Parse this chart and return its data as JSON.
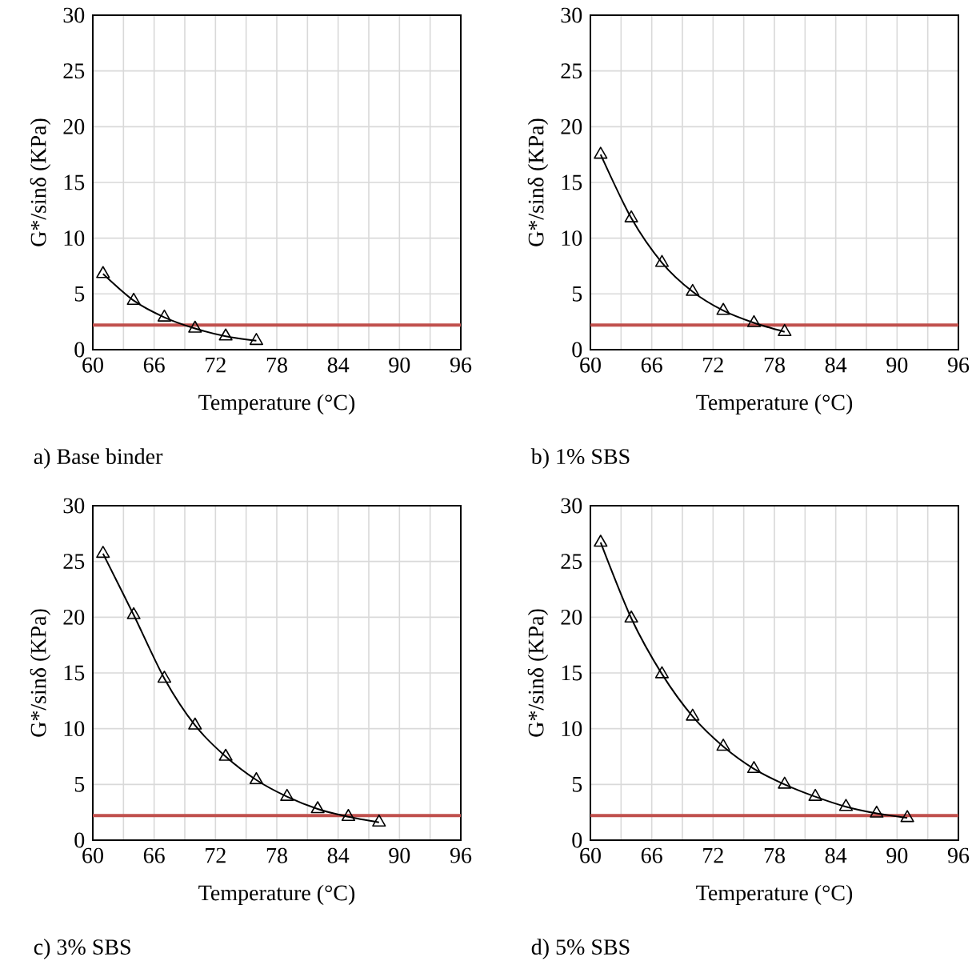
{
  "chart_data": [
    {
      "type": "line",
      "title": "a)  Base binder",
      "xlabel": "Temperature (°C)",
      "ylabel": "G*/sinδ (KPa)",
      "x": [
        61,
        64,
        67,
        70,
        73,
        76
      ],
      "series": [
        {
          "color": "#000000",
          "values": [
            6.8,
            4.4,
            2.9,
            1.9,
            1.2,
            0.8
          ]
        }
      ],
      "marker": "triangle",
      "xlim": [
        60,
        96
      ],
      "ylim": [
        0,
        30
      ],
      "xticks": [
        60,
        {
          "value": 63,
          "label": null
        },
        66,
        {
          "value": 69,
          "label": null
        },
        72,
        {
          "value": 75,
          "label": null
        },
        78,
        {
          "value": 81,
          "label": null
        },
        84,
        {
          "value": 87,
          "label": null
        },
        90,
        {
          "value": 93,
          "label": null
        },
        96
      ],
      "yticks": [
        0,
        5,
        10,
        15,
        20,
        25,
        30
      ],
      "grid": true,
      "ref_lines": [
        {
          "axis": "y",
          "value": 2.2,
          "color": "#c0504d"
        }
      ]
    },
    {
      "type": "line",
      "title": "b)  1% SBS",
      "xlabel": "Temperature (°C)",
      "ylabel": "G*/sinδ (KPa)",
      "x": [
        61,
        64,
        67,
        70,
        73,
        76,
        79
      ],
      "series": [
        {
          "color": "#000000",
          "values": [
            17.5,
            11.8,
            7.8,
            5.2,
            3.5,
            2.4,
            1.6
          ]
        }
      ],
      "marker": "triangle",
      "xlim": [
        60,
        96
      ],
      "ylim": [
        0,
        30
      ],
      "xticks": [
        60,
        {
          "value": 63,
          "label": null
        },
        66,
        {
          "value": 69,
          "label": null
        },
        72,
        {
          "value": 75,
          "label": null
        },
        78,
        {
          "value": 81,
          "label": null
        },
        84,
        {
          "value": 87,
          "label": null
        },
        90,
        {
          "value": 93,
          "label": null
        },
        96
      ],
      "yticks": [
        0,
        5,
        10,
        15,
        20,
        25,
        30
      ],
      "grid": true,
      "ref_lines": [
        {
          "axis": "y",
          "value": 2.2,
          "color": "#c0504d"
        }
      ]
    },
    {
      "type": "line",
      "title": "c)  3% SBS",
      "xlabel": "Temperature (°C)",
      "ylabel": "G*/sinδ (KPa)",
      "x": [
        61,
        64,
        67,
        70,
        73,
        76,
        79,
        82,
        85,
        88
      ],
      "series": [
        {
          "color": "#000000",
          "values": [
            25.7,
            20.2,
            14.5,
            10.3,
            7.5,
            5.4,
            3.9,
            2.8,
            2.1,
            1.6
          ]
        }
      ],
      "marker": "triangle",
      "xlim": [
        60,
        96
      ],
      "ylim": [
        0,
        30
      ],
      "xticks": [
        60,
        {
          "value": 63,
          "label": null
        },
        66,
        {
          "value": 69,
          "label": null
        },
        72,
        {
          "value": 75,
          "label": null
        },
        78,
        {
          "value": 81,
          "label": null
        },
        84,
        {
          "value": 87,
          "label": null
        },
        90,
        {
          "value": 93,
          "label": null
        },
        96
      ],
      "yticks": [
        0,
        5,
        10,
        15,
        20,
        25,
        30
      ],
      "grid": true,
      "ref_lines": [
        {
          "axis": "y",
          "value": 2.2,
          "color": "#c0504d"
        }
      ]
    },
    {
      "type": "line",
      "title": "d)  5% SBS",
      "xlabel": "Temperature (°C)",
      "ylabel": "G*/sinδ (KPa)",
      "x": [
        61,
        64,
        67,
        70,
        73,
        76,
        79,
        82,
        85,
        88,
        91
      ],
      "series": [
        {
          "color": "#000000",
          "values": [
            26.7,
            19.9,
            14.9,
            11.1,
            8.4,
            6.4,
            5.0,
            3.9,
            3.0,
            2.4,
            2.0
          ]
        }
      ],
      "marker": "triangle",
      "xlim": [
        60,
        96
      ],
      "ylim": [
        0,
        30
      ],
      "xticks": [
        60,
        {
          "value": 63,
          "label": null
        },
        66,
        {
          "value": 69,
          "label": null
        },
        72,
        {
          "value": 75,
          "label": null
        },
        78,
        {
          "value": 81,
          "label": null
        },
        84,
        {
          "value": 87,
          "label": null
        },
        90,
        {
          "value": 93,
          "label": null
        },
        96
      ],
      "yticks": [
        0,
        5,
        10,
        15,
        20,
        25,
        30
      ],
      "grid": true,
      "ref_lines": [
        {
          "axis": "y",
          "value": 2.2,
          "color": "#c0504d"
        }
      ]
    }
  ]
}
